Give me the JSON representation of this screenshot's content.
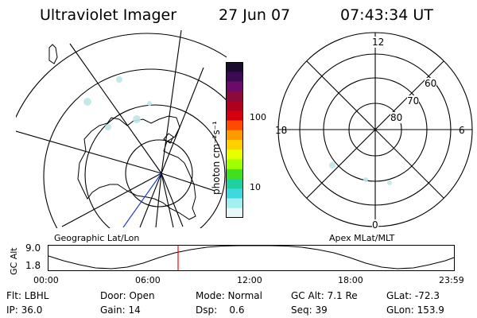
{
  "header": {
    "instrument": "Ultraviolet Imager",
    "date": "27 Jun 07",
    "time": "07:43:34 UT"
  },
  "colorbar": {
    "unit_label": "photon cm⁻²s⁻¹",
    "ticks": [
      "100",
      "10"
    ],
    "colors": [
      "#1a0a2e",
      "#3a0a52",
      "#6a0a6a",
      "#8a0a3a",
      "#b00020",
      "#d40010",
      "#ff4a00",
      "#ff9a00",
      "#ffd000",
      "#e8ff00",
      "#a0ff00",
      "#40e020",
      "#20d0a0",
      "#40d8e0",
      "#a0f0f0",
      "#e8f8f8"
    ]
  },
  "left_map": {
    "label": "Geographic Lat/Lon"
  },
  "right_map": {
    "label": "Apex MLat/MLT",
    "mlt_labels": {
      "top": "12",
      "left": "18",
      "right": "6",
      "bottom": "0"
    },
    "lat_labels": [
      "60",
      "70",
      "80"
    ]
  },
  "altitude_plot": {
    "y_axis_label": "GC Alt",
    "y_ticks": [
      "9.0",
      "1.8"
    ],
    "x_ticks": [
      "00:00",
      "06:00",
      "12:00",
      "18:00",
      "23:59"
    ],
    "marker_color": "#ff0000",
    "marker_time": "07:43"
  },
  "info": {
    "filter": "Flt: LBHL",
    "ip": "IP: 36.0",
    "door": "Door: Open",
    "gain": "Gain: 14",
    "mode": "Mode: Normal",
    "dsp": "Dsp:    0.6",
    "gc_alt": "GC Alt: 7.1 Re",
    "seq": "Seq: 39",
    "glat": "GLat: -72.3",
    "glon": "GLon: 153.9"
  }
}
